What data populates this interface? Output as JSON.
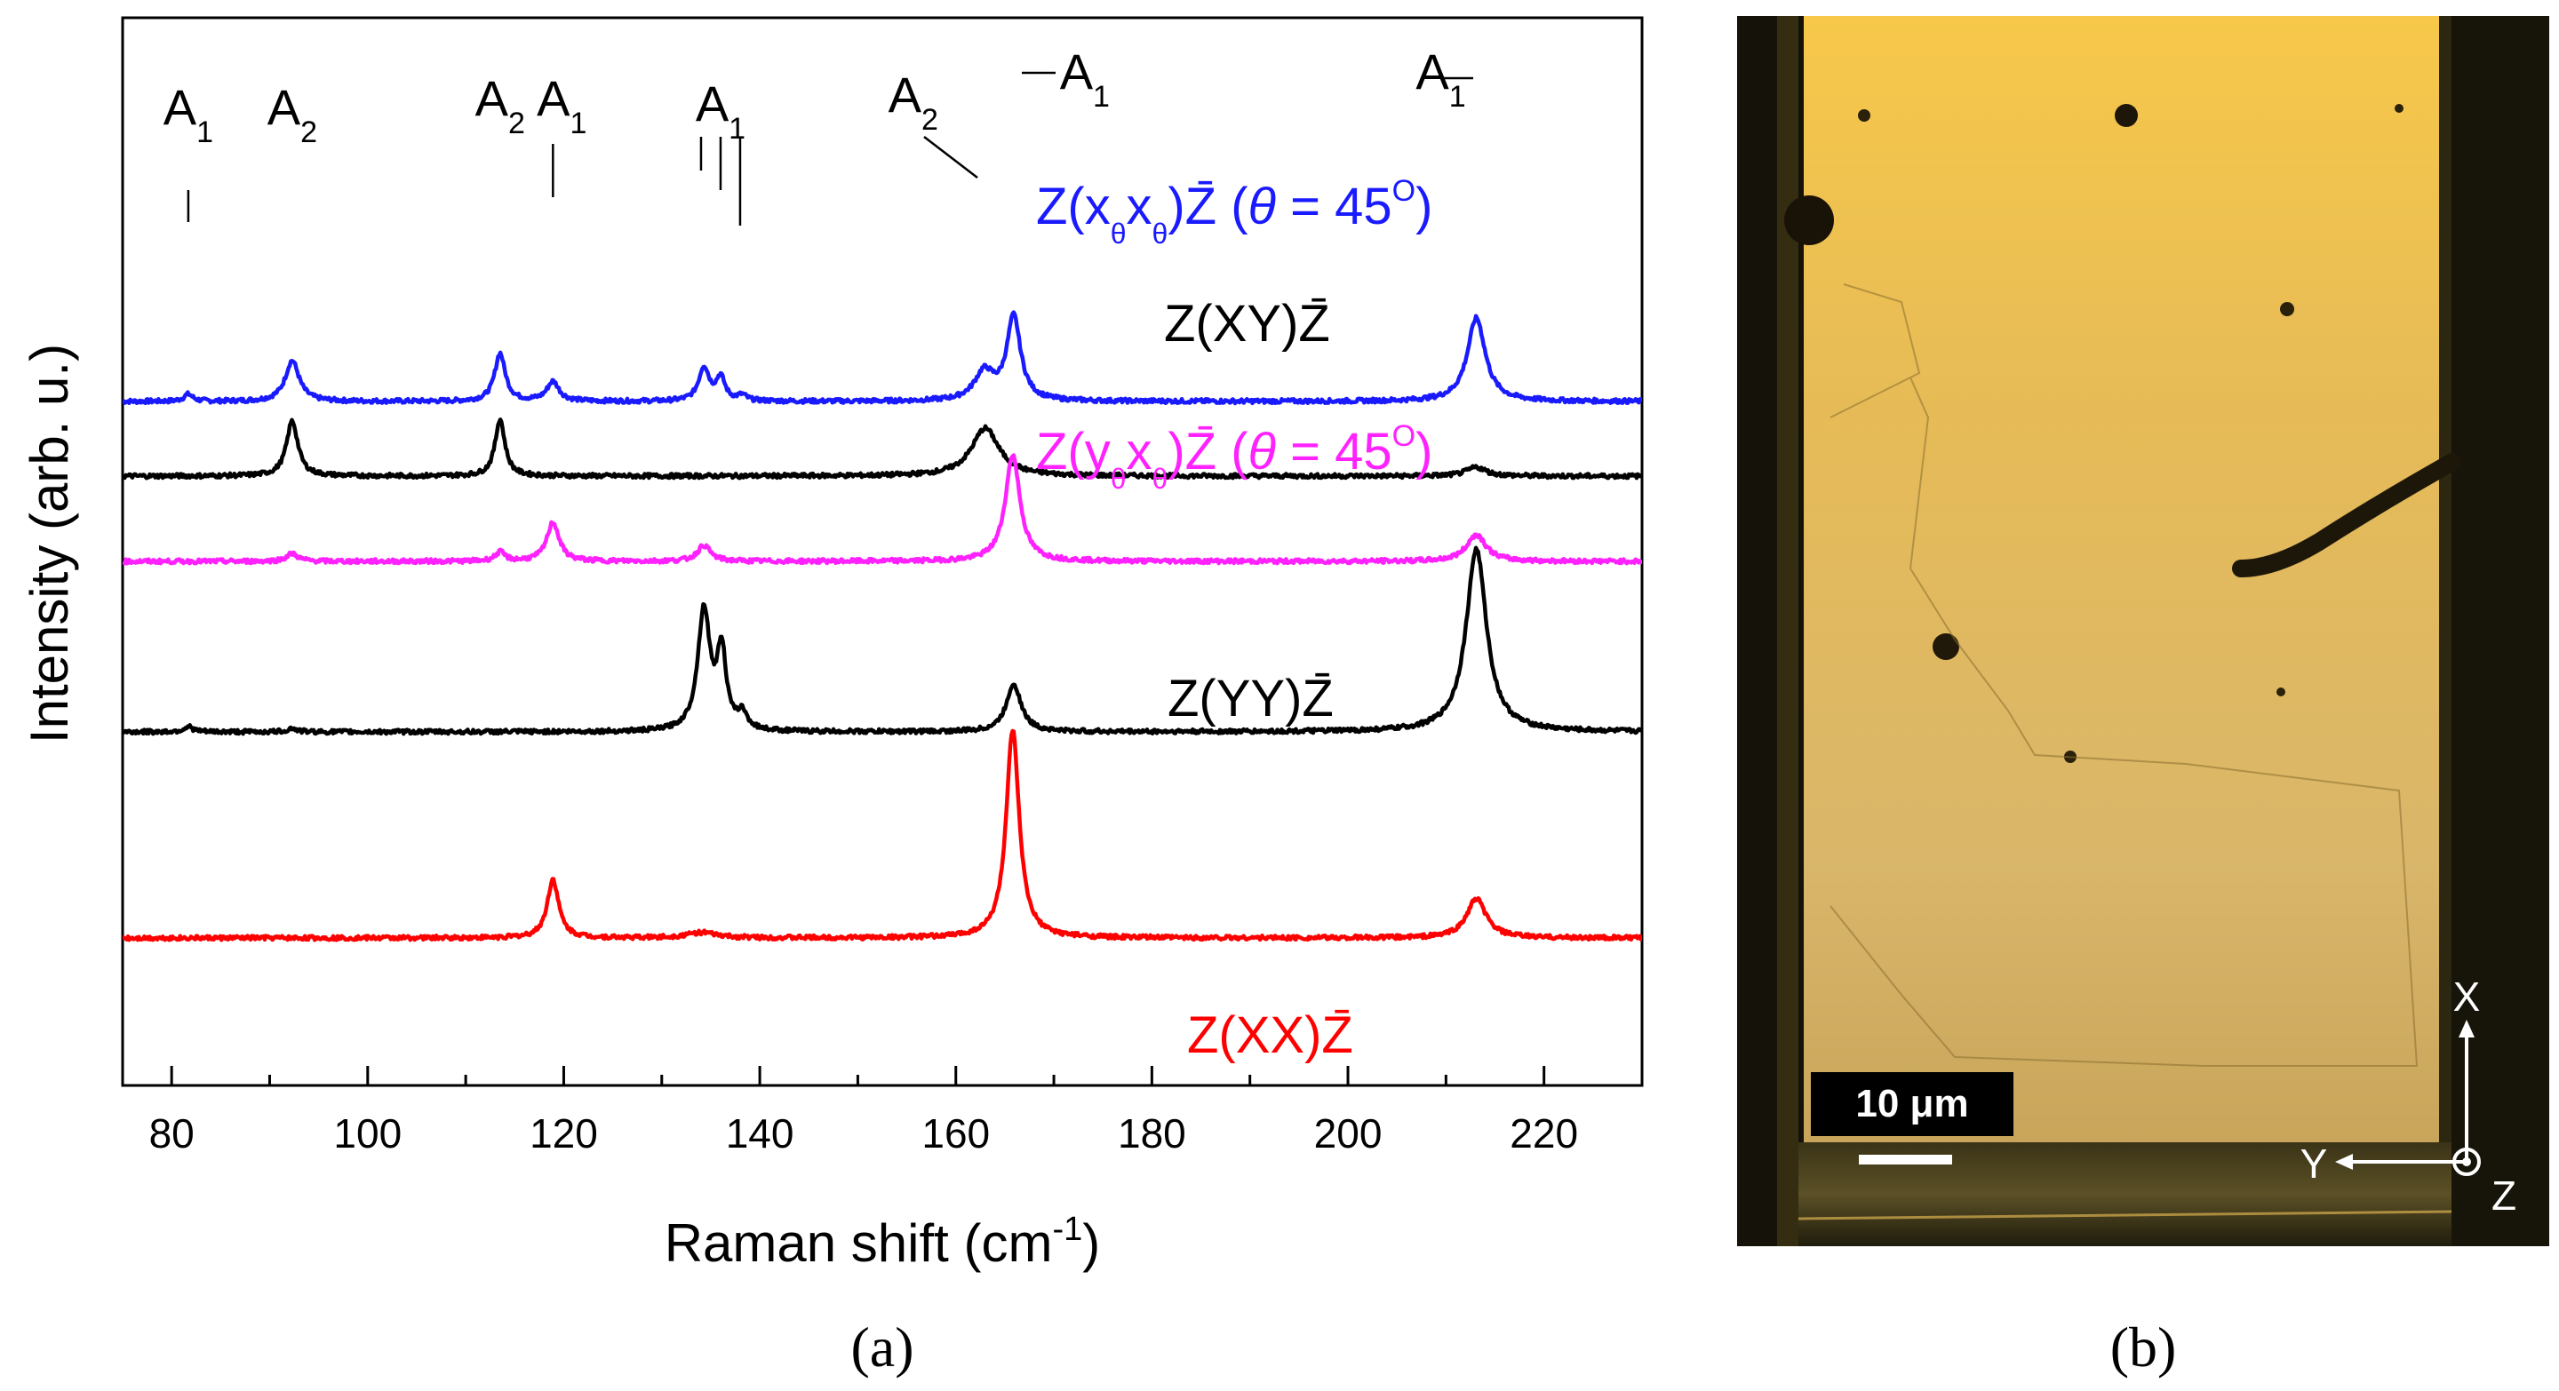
{
  "chart_data": {
    "type": "line",
    "panel_label": "(a)",
    "xlabel": "Raman shift (cm",
    "xlabel_sup": "-1",
    "xlabel_close": ")",
    "ylabel": "Intensity (arb. u.)",
    "xlim": [
      75,
      230
    ],
    "xticks": [
      80,
      100,
      120,
      140,
      160,
      180,
      200,
      220
    ],
    "series": [
      {
        "id": "xtheta",
        "name": "Z(x",
        "name_sub1": "θ",
        "name_mid": "x",
        "name_sub2": "θ",
        "name_end": ")Z̄ (",
        "name_theta": "θ",
        "name_eq": " = 45",
        "name_deg": "O",
        "name_close": ")",
        "color": "#1a1aff",
        "offset": 9.3,
        "peaks": [
          [
            81.7,
            0.2,
            0.55
          ],
          [
            92.3,
            1.15,
            0.85
          ],
          [
            113.5,
            1.35,
            0.65
          ],
          [
            118.9,
            0.55,
            0.75
          ],
          [
            134.3,
            0.95,
            0.65
          ],
          [
            136.0,
            0.65,
            0.55
          ],
          [
            138.2,
            0.15,
            0.55
          ],
          [
            162.9,
            0.8,
            1.2
          ],
          [
            165.9,
            2.35,
            0.85
          ],
          [
            213.1,
            2.35,
            1.1
          ]
        ]
      },
      {
        "id": "xy",
        "name": "Z(XY)Z̄",
        "color": "#000000",
        "offset": 7.2,
        "peaks": [
          [
            92.3,
            1.55,
            0.7
          ],
          [
            113.5,
            1.6,
            0.6
          ],
          [
            163.0,
            1.35,
            1.7
          ],
          [
            213.1,
            0.25,
            1.2
          ]
        ]
      },
      {
        "id": "ytheta",
        "name": "Z(y",
        "name_sub1": "θ",
        "name_mid": "x",
        "name_sub2": "θ",
        "name_end": ")Z̄ (",
        "name_theta": "θ",
        "name_eq": " = 45",
        "name_deg": "O",
        "name_close": ")",
        "color": "#ff22ff",
        "offset": 4.8,
        "peaks": [
          [
            92.3,
            0.22,
            0.7
          ],
          [
            113.5,
            0.25,
            0.6
          ],
          [
            118.9,
            1.1,
            0.75
          ],
          [
            134.3,
            0.45,
            0.8
          ],
          [
            165.8,
            3.0,
            0.9
          ],
          [
            213.1,
            0.75,
            1.2
          ]
        ]
      },
      {
        "id": "yy",
        "name": "Z(YY)Z̄",
        "color": "#000000",
        "offset": 0.0,
        "peaks": [
          [
            81.7,
            0.15,
            0.55
          ],
          [
            92.3,
            0.1,
            0.55
          ],
          [
            134.3,
            3.4,
            0.75
          ],
          [
            136.1,
            2.2,
            0.55
          ],
          [
            138.2,
            0.45,
            0.6
          ],
          [
            165.9,
            1.35,
            0.9
          ],
          [
            213.1,
            5.15,
            1.25
          ]
        ]
      },
      {
        "id": "xx",
        "name": "Z(XX)Z̄",
        "color": "#ff0000",
        "offset": -5.8,
        "peaks": [
          [
            118.9,
            1.65,
            0.7
          ],
          [
            134.0,
            0.15,
            1.8
          ],
          [
            165.8,
            5.85,
            0.8
          ],
          [
            213.1,
            1.1,
            1.2
          ]
        ]
      }
    ],
    "annotations": [
      {
        "base": "A",
        "sub": "1",
        "pos": 81.7
      },
      {
        "base": "A",
        "sub": "2",
        "pos": 92.3
      },
      {
        "base": "A",
        "sub": "2",
        "pos": 113.5
      },
      {
        "base": "A",
        "sub": "1",
        "pos": 118.9
      },
      {
        "base": "A",
        "sub": "1",
        "pos": 136.0
      },
      {
        "base": "A",
        "sub": "2",
        "pos": 162.9
      },
      {
        "base": "A",
        "sub": "1",
        "pos": 165.9
      },
      {
        "base": "A",
        "sub": "1",
        "pos": 213.1
      }
    ]
  },
  "image_panel": {
    "panel_label": "(b)",
    "scale_bar_label": "10 μm",
    "axis_x": "X",
    "axis_y": "Y",
    "axis_z": "Z"
  }
}
